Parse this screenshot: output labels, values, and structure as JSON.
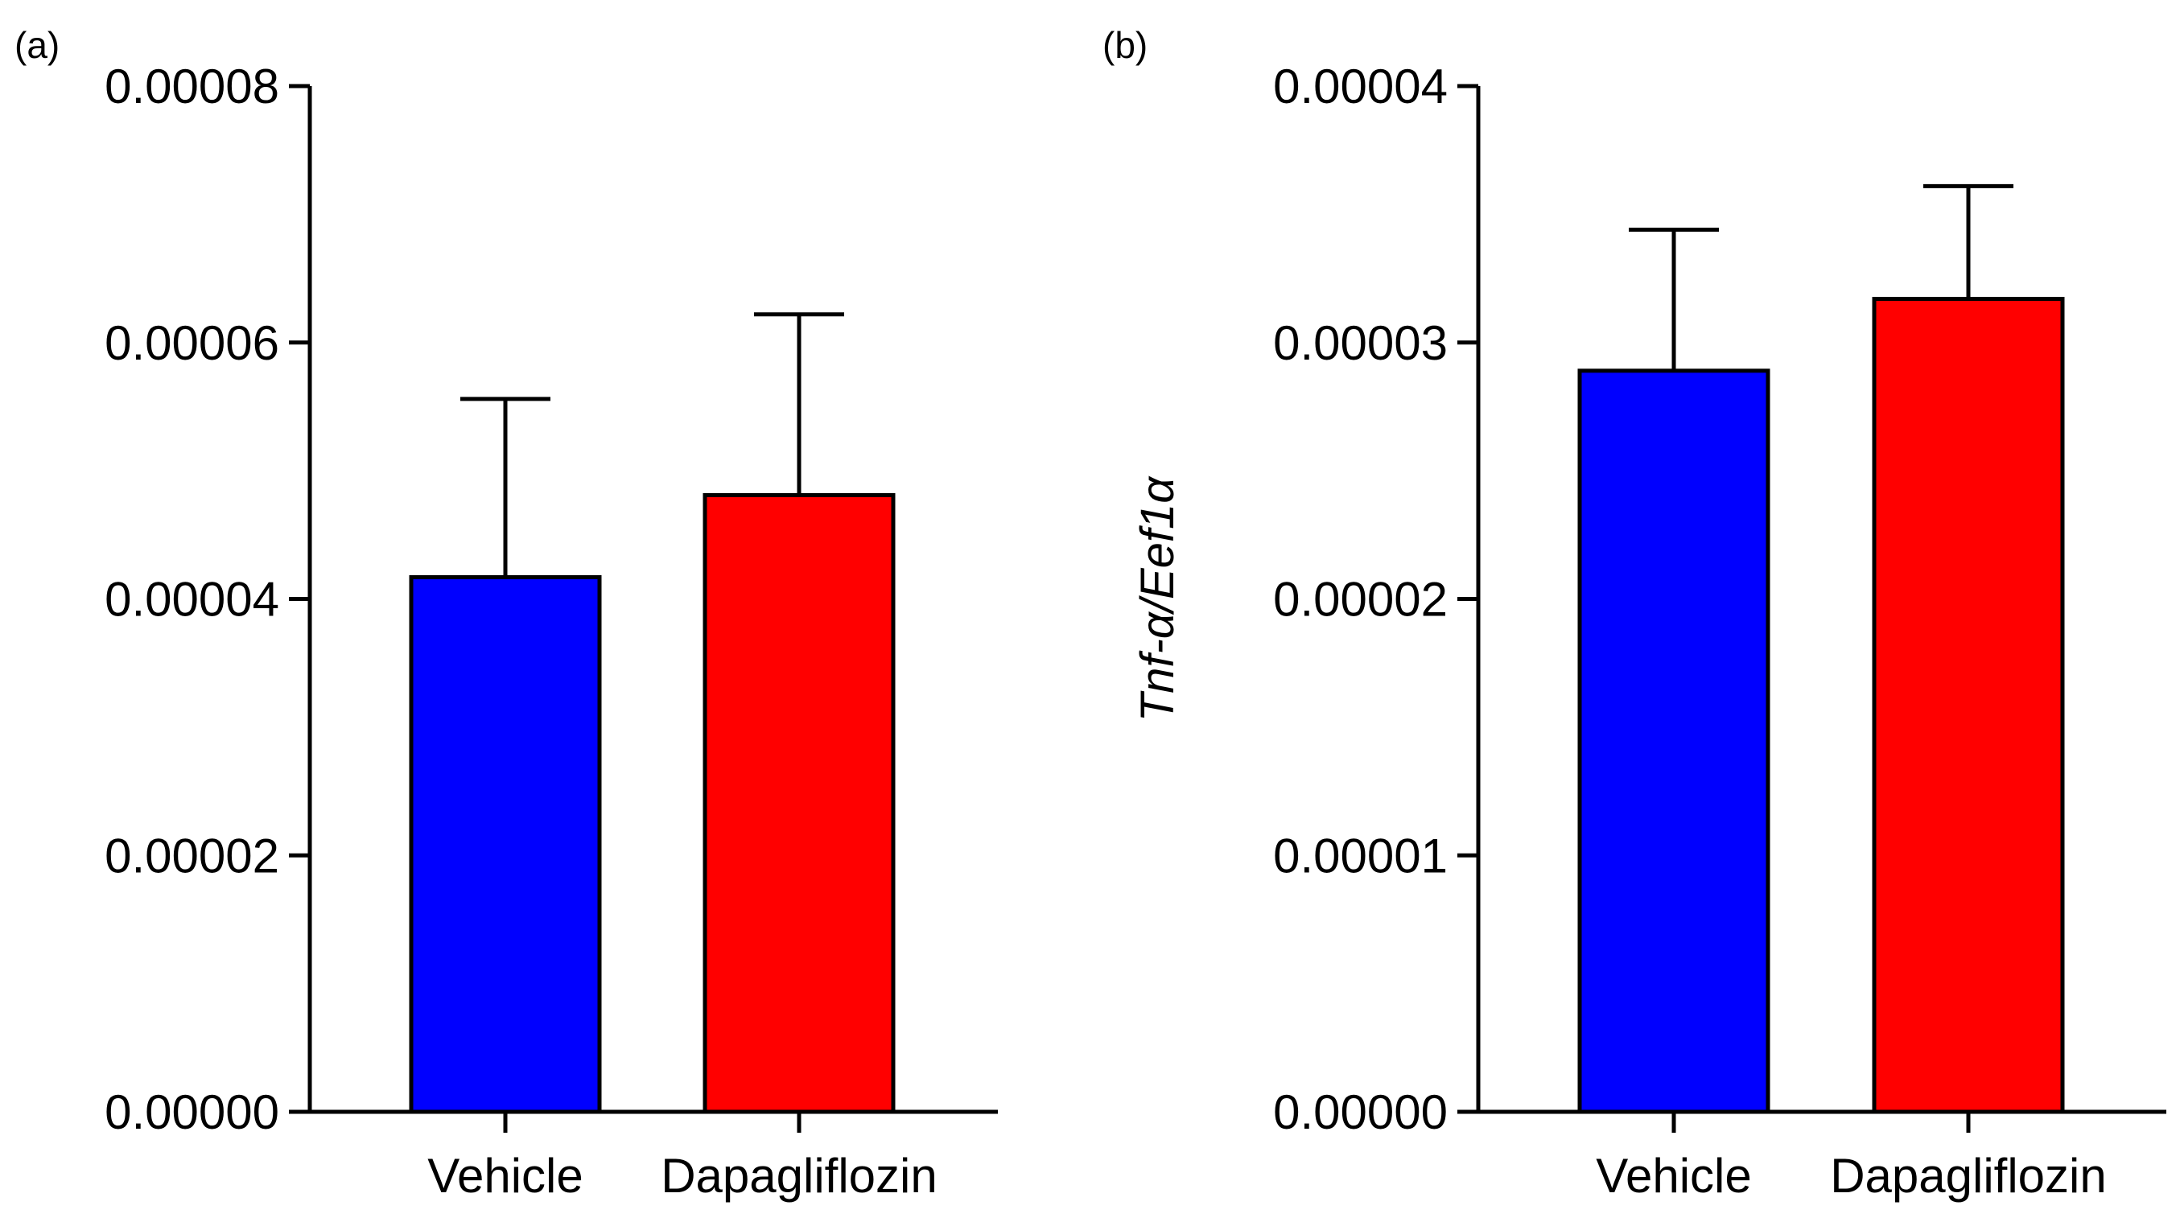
{
  "chart_data": [
    {
      "type": "bar",
      "panel_label": "(a)",
      "title": "",
      "xlabel": "",
      "ylabel": "",
      "categories": [
        "Vehicle",
        "Dapagliflozin"
      ],
      "values": [
        4.17e-05,
        4.81e-05
      ],
      "errors": [
        1.39e-05,
        1.41e-05
      ],
      "colors": [
        "#0000ff",
        "#ff0000"
      ],
      "ylim": [
        0,
        8e-05
      ],
      "yticks": [
        0,
        2e-05,
        4e-05,
        6e-05,
        8e-05
      ],
      "ytick_labels": [
        "0.00000",
        "0.00002",
        "0.00004",
        "0.00006",
        "0.00008"
      ],
      "grid": false,
      "legend": "none"
    },
    {
      "type": "bar",
      "panel_label": "(b)",
      "title": "",
      "xlabel": "",
      "ylabel": "Tnf-α/Eef1α",
      "categories": [
        "Vehicle",
        "Dapagliflozin"
      ],
      "values": [
        2.89e-05,
        3.17e-05
      ],
      "errors": [
        5.5e-06,
        4.4e-06
      ],
      "colors": [
        "#0000ff",
        "#ff0000"
      ],
      "ylim": [
        0,
        4e-05
      ],
      "yticks": [
        0,
        1e-05,
        2e-05,
        3e-05,
        4e-05
      ],
      "ytick_labels": [
        "0.00000",
        "0.00001",
        "0.00002",
        "0.00003",
        "0.00004"
      ],
      "grid": false,
      "legend": "none"
    }
  ]
}
